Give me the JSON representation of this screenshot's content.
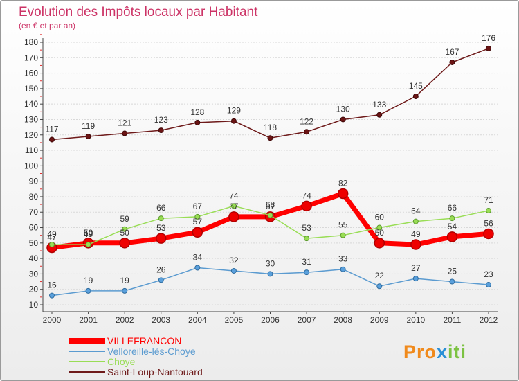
{
  "chart_data": {
    "type": "line",
    "title": "Evolution des Impôts locaux par Habitant",
    "subtitle": "(en € et par an)",
    "xlabel": "",
    "ylabel": "",
    "categories": [
      "2000",
      "2001",
      "2002",
      "2003",
      "2004",
      "2005",
      "2006",
      "2007",
      "2008",
      "2009",
      "2010",
      "2011",
      "2012"
    ],
    "y_ticks": [
      10,
      20,
      30,
      40,
      50,
      60,
      70,
      80,
      90,
      100,
      110,
      120,
      130,
      140,
      150,
      160,
      170,
      180
    ],
    "ylim": [
      10,
      180
    ],
    "grid": true,
    "legend_position": "bottom-left",
    "series": [
      {
        "name": "VILLEFRANCON",
        "color": "#ff0000",
        "point_color": "#ee0000",
        "point_stroke": "#b00000",
        "values": [
          47,
          50,
          50,
          53,
          57,
          67,
          67,
          74,
          82,
          50,
          49,
          54,
          56
        ]
      },
      {
        "name": "Velloreille-lès-Choye",
        "color": "#5b9bd0",
        "point_color": "#5aa0dc",
        "point_stroke": "#2e6b9e",
        "values": [
          16,
          19,
          19,
          26,
          34,
          32,
          30,
          31,
          33,
          22,
          27,
          25,
          23
        ]
      },
      {
        "name": "Choye",
        "color": "#99dd55",
        "point_color": "#99dd55",
        "point_stroke": "#5a9a2a",
        "values": [
          49,
          49,
          59,
          66,
          67,
          74,
          68,
          53,
          55,
          60,
          64,
          66,
          71
        ]
      },
      {
        "name": "Saint-Loup-Nantouard",
        "color": "#6e1a1a",
        "point_color": "#6b1414",
        "point_stroke": "#3d0808",
        "values": [
          117,
          119,
          121,
          123,
          128,
          129,
          118,
          122,
          130,
          133,
          145,
          167,
          176
        ]
      }
    ]
  },
  "logo": {
    "parts": [
      "Pro",
      "x",
      "iti"
    ],
    "colors": [
      "#f08a1c",
      "#2a8fd6",
      "#7cc242"
    ]
  },
  "colors": {
    "title": "#cc3366",
    "grid": "#d8d8d8",
    "axis": "#444444"
  }
}
